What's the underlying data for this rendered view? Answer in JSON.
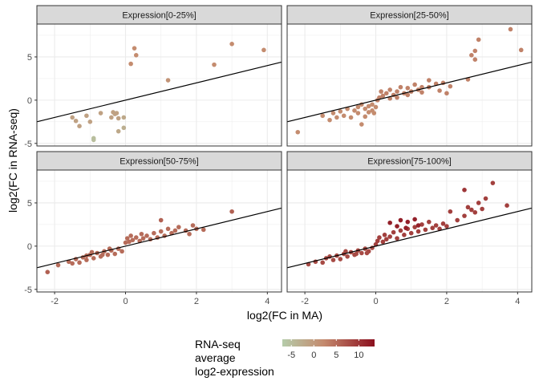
{
  "chart_data": {
    "type": "scatter",
    "xlabel": "log2(FC in MA)",
    "ylabel": "log2(FC in RNA-seq)",
    "xlim": [
      -2.5,
      4.4
    ],
    "ylim": [
      -5.3,
      8.8
    ],
    "x_ticks": [
      -2,
      0,
      2,
      4
    ],
    "y_ticks": [
      -5,
      0,
      5
    ],
    "grid": true,
    "reference_line": {
      "slope": 1,
      "intercept": 0
    },
    "color_scale": {
      "title_lines": [
        "RNA-seq",
        "average",
        "log2-expression"
      ],
      "ticks": [
        -5,
        0,
        5,
        10
      ],
      "domain": [
        -7,
        13.5
      ],
      "low_color": "#b5ccaa",
      "mid_color": "#c48a6e",
      "high_color": "#8b0f1e"
    },
    "panels": [
      {
        "title": "Expression[0-25%]",
        "points": [
          [
            -1.5,
            -2.0,
            -1
          ],
          [
            -1.4,
            -2.4,
            -1
          ],
          [
            -1.3,
            -3.0,
            -1
          ],
          [
            -1.1,
            -1.8,
            -1
          ],
          [
            -1.0,
            -2.5,
            -1
          ],
          [
            -0.9,
            -4.4,
            -5
          ],
          [
            -0.9,
            -4.6,
            -5
          ],
          [
            -0.7,
            -1.5,
            -1
          ],
          [
            -0.4,
            -2.0,
            -1
          ],
          [
            -0.35,
            -1.4,
            -1
          ],
          [
            -0.3,
            -1.6,
            -1
          ],
          [
            -0.25,
            -1.5,
            -1
          ],
          [
            -0.2,
            -3.6,
            -2
          ],
          [
            -0.2,
            -2.1,
            -1
          ],
          [
            -0.05,
            -3.2,
            -3
          ],
          [
            -0.05,
            -2.0,
            -2
          ],
          [
            0.15,
            4.2,
            2
          ],
          [
            0.25,
            6.0,
            2
          ],
          [
            0.3,
            5.2,
            2
          ],
          [
            1.2,
            2.3,
            1
          ],
          [
            2.5,
            4.1,
            2
          ],
          [
            3.0,
            6.5,
            2
          ],
          [
            3.9,
            5.8,
            2
          ]
        ]
      },
      {
        "title": "Expression[25-50%]",
        "points": [
          [
            -2.2,
            -3.7,
            2
          ],
          [
            -1.5,
            -1.8,
            2
          ],
          [
            -1.3,
            -2.3,
            2
          ],
          [
            -1.2,
            -1.5,
            2
          ],
          [
            -1.1,
            -2.0,
            2
          ],
          [
            -1.0,
            -1.3,
            2
          ],
          [
            -0.9,
            -1.8,
            2
          ],
          [
            -0.8,
            -1.0,
            2
          ],
          [
            -0.7,
            -2.0,
            2
          ],
          [
            -0.6,
            -1.2,
            2
          ],
          [
            -0.5,
            -0.8,
            2
          ],
          [
            -0.5,
            -1.5,
            2
          ],
          [
            -0.4,
            -0.5,
            2
          ],
          [
            -0.4,
            -2.8,
            2
          ],
          [
            -0.3,
            -1.0,
            2
          ],
          [
            -0.3,
            -1.9,
            2
          ],
          [
            -0.2,
            -0.7,
            2
          ],
          [
            -0.2,
            -1.4,
            2
          ],
          [
            -0.1,
            -0.5,
            2
          ],
          [
            -0.1,
            -1.2,
            2
          ],
          [
            0.0,
            -0.8,
            2
          ],
          [
            -0.05,
            -1.5,
            2
          ],
          [
            0.05,
            0.0,
            3
          ],
          [
            0.1,
            0.3,
            3
          ],
          [
            0.15,
            1.0,
            3
          ],
          [
            0.2,
            0.5,
            3
          ],
          [
            0.3,
            0.8,
            3
          ],
          [
            0.4,
            0.2,
            3
          ],
          [
            0.4,
            1.2,
            3
          ],
          [
            0.5,
            0.6,
            3
          ],
          [
            0.6,
            1.0,
            3
          ],
          [
            0.6,
            0.3,
            3
          ],
          [
            0.7,
            1.5,
            3
          ],
          [
            0.8,
            0.8,
            3
          ],
          [
            0.9,
            1.4,
            3
          ],
          [
            1.0,
            1.0,
            3
          ],
          [
            1.1,
            1.8,
            3
          ],
          [
            1.2,
            1.2,
            3
          ],
          [
            1.3,
            0.9,
            3
          ],
          [
            1.5,
            1.5,
            3
          ],
          [
            1.7,
            1.9,
            3
          ],
          [
            1.9,
            2.0,
            3
          ],
          [
            2.0,
            0.8,
            3
          ],
          [
            2.1,
            1.6,
            3
          ],
          [
            2.6,
            2.4,
            3
          ],
          [
            1.5,
            2.3,
            3
          ],
          [
            1.8,
            1.1,
            3
          ],
          [
            1.3,
            1.5,
            3
          ],
          [
            0.9,
            0.6,
            3
          ],
          [
            2.7,
            5.2,
            3
          ],
          [
            2.8,
            4.7,
            3
          ],
          [
            2.8,
            5.7,
            3
          ],
          [
            2.9,
            7.0,
            3
          ],
          [
            3.8,
            8.2,
            3
          ],
          [
            4.1,
            5.8,
            3
          ]
        ]
      },
      {
        "title": "Expression[50-75%]",
        "points": [
          [
            -2.2,
            -3.0,
            6
          ],
          [
            -1.9,
            -2.2,
            5
          ],
          [
            -1.6,
            -1.8,
            5
          ],
          [
            -1.5,
            -2.0,
            5
          ],
          [
            -1.4,
            -1.5,
            5
          ],
          [
            -1.3,
            -1.9,
            5
          ],
          [
            -1.2,
            -1.3,
            5
          ],
          [
            -1.1,
            -1.6,
            5
          ],
          [
            -1.0,
            -1.0,
            5
          ],
          [
            -0.9,
            -1.4,
            5
          ],
          [
            -0.8,
            -0.8,
            5
          ],
          [
            -0.7,
            -1.2,
            5
          ],
          [
            -0.6,
            -0.6,
            5
          ],
          [
            -0.5,
            -1.0,
            5
          ],
          [
            -0.4,
            -0.5,
            5
          ],
          [
            -0.3,
            -0.9,
            5
          ],
          [
            -0.2,
            -0.3,
            5
          ],
          [
            -0.1,
            -0.6,
            5
          ],
          [
            -1.1,
            -1.1,
            5
          ],
          [
            -0.95,
            -0.7,
            5
          ],
          [
            -0.65,
            -1.0,
            5
          ],
          [
            -0.45,
            -0.3,
            5
          ],
          [
            0.0,
            0.4,
            5
          ],
          [
            0.05,
            0.9,
            5
          ],
          [
            0.1,
            0.5,
            5
          ],
          [
            0.15,
            1.2,
            5
          ],
          [
            0.2,
            0.7,
            5
          ],
          [
            0.3,
            1.0,
            5
          ],
          [
            0.4,
            0.6,
            5
          ],
          [
            0.45,
            1.4,
            5
          ],
          [
            0.5,
            0.9,
            5
          ],
          [
            0.6,
            1.2,
            5
          ],
          [
            0.7,
            0.8,
            5
          ],
          [
            0.8,
            1.5,
            5
          ],
          [
            0.9,
            1.0,
            5
          ],
          [
            1.0,
            1.7,
            5
          ],
          [
            1.1,
            1.2,
            5
          ],
          [
            1.2,
            2.0,
            5
          ],
          [
            1.3,
            1.5,
            5
          ],
          [
            1.4,
            1.8,
            5
          ],
          [
            1.5,
            2.2,
            5
          ],
          [
            1.7,
            1.8,
            5
          ],
          [
            1.8,
            1.4,
            5
          ],
          [
            1.9,
            2.4,
            5
          ],
          [
            2.0,
            2.0,
            5
          ],
          [
            2.2,
            1.9,
            5
          ],
          [
            1.0,
            3.0,
            6
          ],
          [
            3.0,
            4.0,
            6
          ]
        ]
      },
      {
        "title": "Expression[75-100%]",
        "points": [
          [
            -1.9,
            -2.1,
            8
          ],
          [
            -1.7,
            -1.8,
            8
          ],
          [
            -1.5,
            -1.9,
            8
          ],
          [
            -1.4,
            -1.4,
            8
          ],
          [
            -1.2,
            -1.6,
            8
          ],
          [
            -1.1,
            -1.1,
            8
          ],
          [
            -1.0,
            -1.5,
            8
          ],
          [
            -0.9,
            -0.9,
            8
          ],
          [
            -0.8,
            -1.2,
            8
          ],
          [
            -0.7,
            -0.7,
            8
          ],
          [
            -0.6,
            -1.0,
            8
          ],
          [
            -0.5,
            -0.5,
            8
          ],
          [
            -0.4,
            -0.8,
            8
          ],
          [
            -0.3,
            -0.3,
            8
          ],
          [
            -0.2,
            -0.6,
            8
          ],
          [
            -0.1,
            -0.2,
            8
          ],
          [
            -1.3,
            -1.2,
            8
          ],
          [
            -0.85,
            -0.6,
            8
          ],
          [
            -0.55,
            -0.9,
            8
          ],
          [
            -0.25,
            -0.8,
            8
          ],
          [
            0.0,
            0.2,
            9
          ],
          [
            0.05,
            0.6,
            9
          ],
          [
            0.1,
            1.0,
            9
          ],
          [
            0.2,
            0.5,
            9
          ],
          [
            0.25,
            1.3,
            9
          ],
          [
            0.3,
            0.8,
            9
          ],
          [
            0.4,
            1.1,
            9
          ],
          [
            0.5,
            1.6,
            9
          ],
          [
            0.6,
            0.9,
            9
          ],
          [
            0.7,
            1.8,
            9
          ],
          [
            0.8,
            1.3,
            9
          ],
          [
            0.9,
            2.0,
            9
          ],
          [
            1.0,
            1.5,
            9
          ],
          [
            1.1,
            2.2,
            9
          ],
          [
            1.2,
            1.7,
            9
          ],
          [
            1.3,
            2.5,
            9
          ],
          [
            1.4,
            1.9,
            9
          ],
          [
            1.5,
            2.8,
            9
          ],
          [
            1.6,
            2.1,
            9
          ],
          [
            1.7,
            2.4,
            9
          ],
          [
            1.8,
            2.0,
            9
          ],
          [
            1.9,
            2.6,
            9
          ],
          [
            2.0,
            2.3,
            9
          ],
          [
            0.4,
            2.7,
            12
          ],
          [
            0.6,
            2.3,
            12
          ],
          [
            0.7,
            3.0,
            12
          ],
          [
            0.9,
            2.8,
            12
          ],
          [
            1.1,
            3.1,
            12
          ],
          [
            1.2,
            2.4,
            12
          ],
          [
            0.85,
            2.1,
            12
          ],
          [
            2.1,
            4.0,
            9
          ],
          [
            2.3,
            3.0,
            9
          ],
          [
            2.5,
            3.5,
            9
          ],
          [
            2.6,
            4.5,
            9
          ],
          [
            2.7,
            4.2,
            9
          ],
          [
            2.8,
            3.9,
            9
          ],
          [
            2.9,
            5.0,
            9
          ],
          [
            3.0,
            4.3,
            9
          ],
          [
            3.1,
            5.5,
            9
          ],
          [
            3.3,
            7.3,
            9
          ],
          [
            3.7,
            4.7,
            9
          ],
          [
            2.5,
            6.5,
            10
          ]
        ]
      }
    ]
  }
}
